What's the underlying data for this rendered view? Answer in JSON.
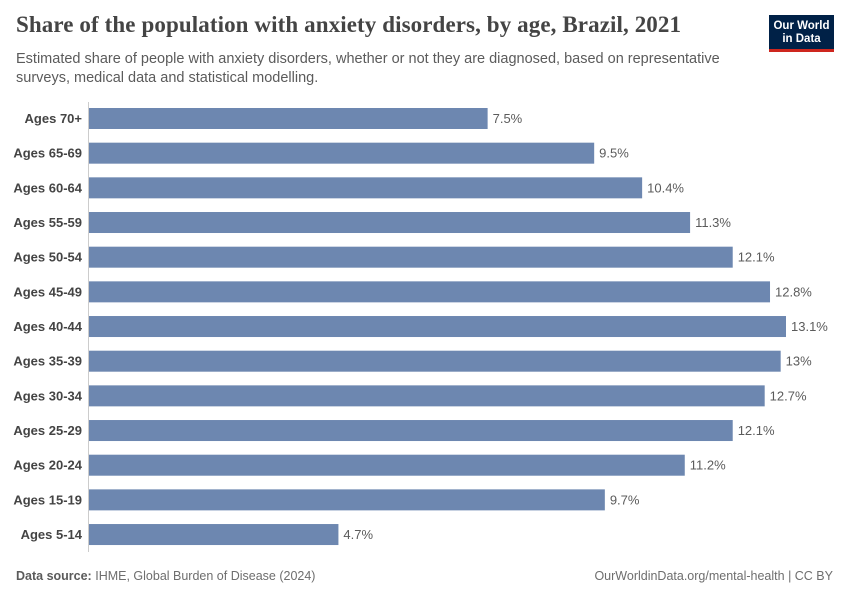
{
  "header": {
    "title": "Share of the population with anxiety disorders, by age, Brazil, 2021",
    "subtitle": "Estimated share of people with anxiety disorders, whether or not they are diagnosed, based on representative surveys, medical data and statistical modelling."
  },
  "logo": {
    "line1": "Our World",
    "line2": "in Data"
  },
  "footer": {
    "source_label": "Data source:",
    "source_text": "IHME, Global Burden of Disease (2024)",
    "url": "OurWorldinData.org/mental-health | CC BY"
  },
  "colors": {
    "bar": "#6d87b0",
    "axis": "#cccccc",
    "label": "#444444",
    "value": "#5b5b5b"
  },
  "chart_data": {
    "type": "bar",
    "orientation": "horizontal",
    "categories": [
      "Ages 70+",
      "Ages 65-69",
      "Ages 60-64",
      "Ages 55-59",
      "Ages 50-54",
      "Ages 45-49",
      "Ages 40-44",
      "Ages 35-39",
      "Ages 30-34",
      "Ages 25-29",
      "Ages 20-24",
      "Ages 15-19",
      "Ages 5-14"
    ],
    "values": [
      7.5,
      9.5,
      10.4,
      11.3,
      12.1,
      12.8,
      13.1,
      13.0,
      12.7,
      12.1,
      11.2,
      9.7,
      4.7
    ],
    "value_labels": [
      "7.5%",
      "9.5%",
      "10.4%",
      "11.3%",
      "12.1%",
      "12.8%",
      "13.1%",
      "13%",
      "12.7%",
      "12.1%",
      "11.2%",
      "9.7%",
      "4.7%"
    ],
    "unit": "%",
    "xlim": [
      0,
      13.1
    ],
    "grid": false,
    "legend": "none"
  }
}
